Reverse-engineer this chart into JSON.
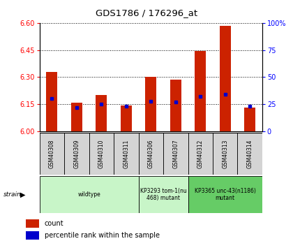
{
  "title": "GDS1786 / 176296_at",
  "samples": [
    "GSM40308",
    "GSM40309",
    "GSM40310",
    "GSM40311",
    "GSM40306",
    "GSM40307",
    "GSM40312",
    "GSM40313",
    "GSM40314"
  ],
  "count_values": [
    6.33,
    6.16,
    6.2,
    6.145,
    6.3,
    6.285,
    6.445,
    6.585,
    6.13
  ],
  "percentile_values": [
    30,
    22,
    25,
    23,
    28,
    27,
    32,
    34,
    23
  ],
  "ylim_left": [
    6.0,
    6.6
  ],
  "ylim_right": [
    0,
    100
  ],
  "yticks_left": [
    6.0,
    6.15,
    6.3,
    6.45,
    6.6
  ],
  "yticks_right": [
    0,
    25,
    50,
    75,
    100
  ],
  "group_ranges": [
    [
      0,
      3
    ],
    [
      4,
      5
    ],
    [
      6,
      8
    ]
  ],
  "group_labels": [
    "wildtype",
    "KP3293 tom-1(nu\n468) mutant",
    "KP3365 unc-43(n1186)\nmutant"
  ],
  "group_colors": [
    "#c8f5c8",
    "#c8f5c8",
    "#66cc66"
  ],
  "bar_color": "#cc2200",
  "dot_color": "#0000cc",
  "bar_width": 0.45,
  "legend_items": [
    {
      "label": "count",
      "color": "#cc2200"
    },
    {
      "label": "percentile rank within the sample",
      "color": "#0000cc"
    }
  ]
}
